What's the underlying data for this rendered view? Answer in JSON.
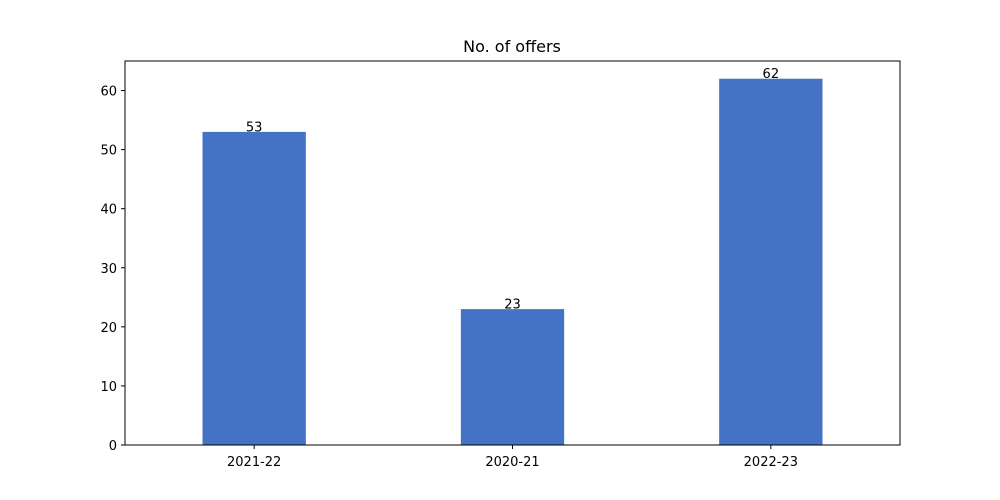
{
  "chart_data": {
    "type": "bar",
    "title": "No. of offers",
    "xlabel": "",
    "ylabel": "",
    "categories": [
      "2021-22",
      "2020-21",
      "2022-23"
    ],
    "values": [
      53,
      23,
      62
    ],
    "ylim": [
      0,
      65
    ],
    "yticks": [
      0,
      10,
      20,
      30,
      40,
      50,
      60
    ],
    "grid": false,
    "legend": "none",
    "bar_color": "#4472c4",
    "data_labels": [
      "53",
      "23",
      "62"
    ]
  }
}
